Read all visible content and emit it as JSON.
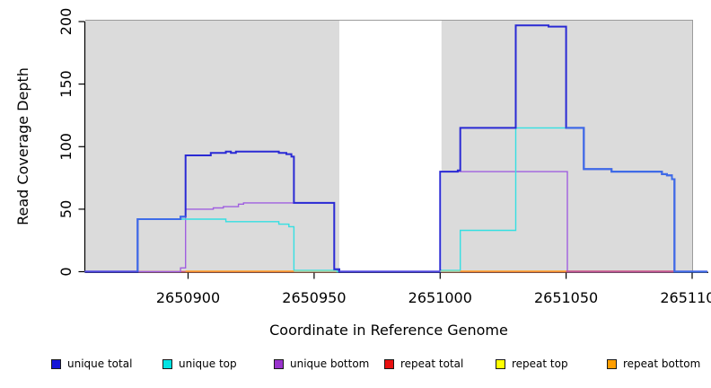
{
  "chart_data": {
    "type": "line",
    "subtype": "step-coverage",
    "title": "",
    "xlabel": "Coordinate in Reference Genome",
    "ylabel": "Read Coverage Depth",
    "xlim": [
      2650859,
      2651106
    ],
    "ylim": [
      0,
      200
    ],
    "grid": false,
    "plot_background": "#dbdbdb",
    "plot_border_color": "#9c9c9c",
    "axis_color": "#000000",
    "x_ticks": {
      "values": [
        2650900,
        2650950,
        2651000,
        2651050,
        2651100
      ],
      "labels": [
        "2650900",
        "2650950",
        "2651000",
        "2651050",
        "2651100"
      ]
    },
    "y_ticks": {
      "values": [
        0,
        50,
        100,
        150,
        200
      ],
      "labels": [
        "0",
        "50",
        "100",
        "150",
        "200"
      ]
    },
    "uncovered_gap": {
      "from": 2650960,
      "to": 2651000,
      "color": "#ffffff"
    },
    "series": [
      {
        "name": "repeat-top",
        "label": "repeat top",
        "color": "#f0f020",
        "line_width": 1.2,
        "points": [
          [
            2650859,
            0
          ],
          [
            2651100,
            0
          ]
        ]
      },
      {
        "name": "repeat-bottom",
        "label": "repeat bottom",
        "color": "#ff9e1b",
        "line_width": 1.5,
        "points": [
          [
            2650859,
            0
          ],
          [
            2651100,
            0
          ]
        ]
      },
      {
        "name": "repeat-total",
        "label": "repeat total",
        "color": "#c9537e",
        "line_width": 1.4,
        "points": [
          [
            2650859,
            0
          ],
          [
            2651100,
            0
          ]
        ]
      },
      {
        "name": "unique-bottom",
        "label": "unique bottom",
        "color": "#a05fe0",
        "line_width": 1.4,
        "points": [
          [
            2650859,
            0
          ],
          [
            2650897,
            3
          ],
          [
            2650899,
            50
          ],
          [
            2650910,
            51
          ],
          [
            2650914,
            52
          ],
          [
            2650920,
            54
          ],
          [
            2650922,
            55
          ],
          [
            2650958,
            1
          ],
          [
            2650960,
            0
          ],
          [
            2651000,
            80
          ],
          [
            2651050.5,
            0
          ],
          [
            2651100,
            0
          ]
        ]
      },
      {
        "name": "unique-top",
        "label": "unique top",
        "color": "#35dfe2",
        "line_width": 1.4,
        "points": [
          [
            2650859,
            0
          ],
          [
            2650880,
            42
          ],
          [
            2650915,
            40
          ],
          [
            2650936,
            38
          ],
          [
            2650940,
            36
          ],
          [
            2650942,
            1
          ],
          [
            2650959,
            0
          ],
          [
            2651000,
            1
          ],
          [
            2651008,
            33
          ],
          [
            2651030,
            115
          ],
          [
            2651057,
            82
          ],
          [
            2651068,
            80
          ],
          [
            2651088,
            78
          ],
          [
            2651090,
            77
          ],
          [
            2651092,
            74
          ],
          [
            2651093,
            0
          ],
          [
            2651100,
            0
          ]
        ]
      },
      {
        "name": "unique-total",
        "label": "unique total",
        "color": "#2a2ad4",
        "line_width": 2,
        "points": [
          [
            2650859,
            0
          ],
          [
            2650880,
            42
          ],
          [
            2650897,
            44
          ],
          [
            2650899,
            93
          ],
          [
            2650909,
            95
          ],
          [
            2650915,
            96
          ],
          [
            2650917,
            95
          ],
          [
            2650919,
            96
          ],
          [
            2650936,
            95
          ],
          [
            2650939,
            94
          ],
          [
            2650941,
            92
          ],
          [
            2650942,
            55
          ],
          [
            2650958,
            2
          ],
          [
            2650960,
            0
          ],
          [
            2651000,
            80
          ],
          [
            2651007,
            81
          ],
          [
            2651008,
            115
          ],
          [
            2651030,
            197
          ],
          [
            2651043,
            196
          ],
          [
            2651050,
            115
          ],
          [
            2651057,
            82
          ],
          [
            2651068,
            80
          ],
          [
            2651088,
            78
          ],
          [
            2651090,
            77
          ],
          [
            2651092,
            74
          ],
          [
            2651093,
            0
          ],
          [
            2651106,
            0
          ]
        ]
      }
    ],
    "visual_overlays": {
      "baseline_segments": [
        {
          "from": 2650859,
          "to": 2650880,
          "color": "#5b50e0"
        },
        {
          "from": 2650899,
          "to": 2650942,
          "color": "#ff9e1b"
        },
        {
          "from": 2650942,
          "to": 2650959,
          "color": "#a5dca0"
        },
        {
          "from": 2650960,
          "to": 2651000,
          "color": "#5b50e0"
        },
        {
          "from": 2651000,
          "to": 2651008,
          "color": "#a5dca0"
        },
        {
          "from": 2651008,
          "to": 2651050,
          "color": "#ff9e1b"
        },
        {
          "from": 2651050,
          "to": 2651093,
          "color": "#c9537e"
        },
        {
          "from": 2651093,
          "to": 2651106,
          "color": "#5b50e0"
        }
      ],
      "total_over_top_color": "#3e6ce8",
      "total_over_top_segments": [
        [
          [
            2650880,
            0
          ],
          [
            2650880,
            42
          ],
          [
            2650897,
            44
          ],
          [
            2650899,
            44
          ]
        ],
        [
          [
            2651050,
            115
          ],
          [
            2651057,
            82
          ],
          [
            2651068,
            80
          ],
          [
            2651088,
            78
          ],
          [
            2651090,
            77
          ],
          [
            2651092,
            74
          ],
          [
            2651093,
            0
          ],
          [
            2651106,
            0
          ]
        ]
      ]
    },
    "legend": {
      "position": "bottom",
      "items": [
        {
          "label": "unique total",
          "swatch_color": "#1414d6"
        },
        {
          "label": "unique top",
          "swatch_color": "#00e3e3"
        },
        {
          "label": "unique bottom",
          "swatch_color": "#9933cc"
        },
        {
          "label": "repeat total",
          "swatch_color": "#e81010"
        },
        {
          "label": "repeat top",
          "swatch_color": "#ffff00"
        },
        {
          "label": "repeat bottom",
          "swatch_color": "#ff9e00"
        }
      ]
    }
  }
}
